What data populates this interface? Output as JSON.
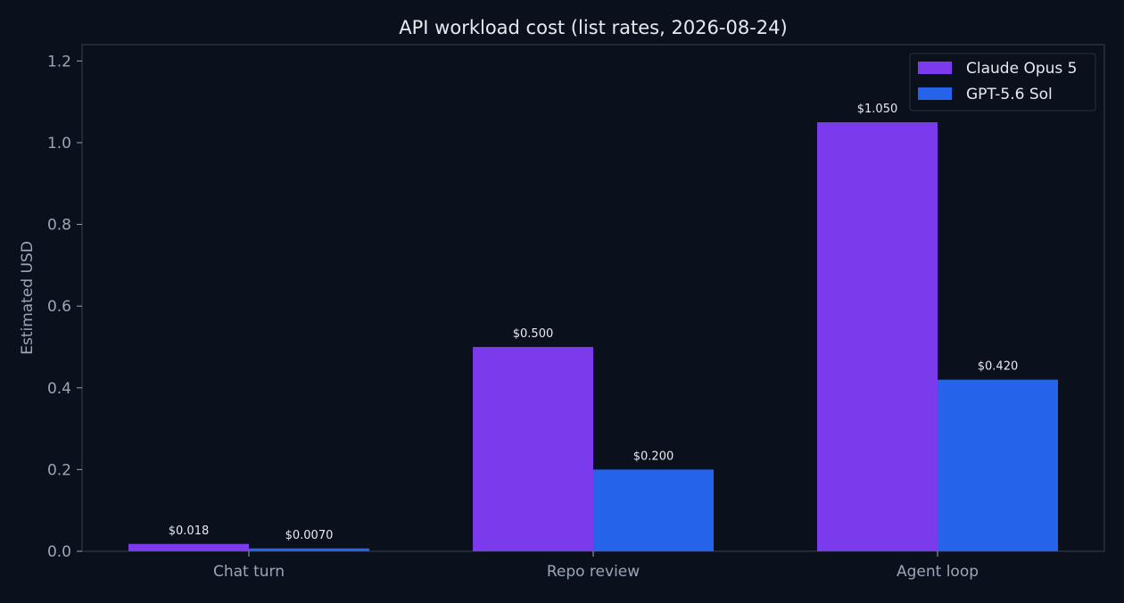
{
  "chart_data": {
    "type": "bar",
    "title": "API workload cost (list rates, 2026-08-24)",
    "xlabel": "",
    "ylabel": "Estimated USD",
    "categories": [
      "Chat turn",
      "Repo review",
      "Agent loop"
    ],
    "series": [
      {
        "name": "Claude Opus 5",
        "color": "#7c3aed",
        "values": [
          0.018,
          0.5,
          1.05
        ],
        "labels": [
          "$0.018",
          "$0.500",
          "$1.050"
        ]
      },
      {
        "name": "GPT-5.6 Sol",
        "color": "#2563eb",
        "values": [
          0.007,
          0.2,
          0.42
        ],
        "labels": [
          "$0.0070",
          "$0.200",
          "$0.420"
        ]
      }
    ],
    "ylim": [
      0,
      1.24
    ],
    "yticks": [
      "0.0",
      "0.2",
      "0.4",
      "0.6",
      "0.8",
      "1.0",
      "1.2"
    ],
    "ytick_values": [
      0,
      0.2,
      0.4,
      0.6,
      0.8,
      1.0,
      1.2
    ],
    "grid": false,
    "legend_position": "top-right",
    "colors": {
      "background": "#0b111c",
      "axis": "#26323f",
      "tick_text": "#9aa6b8",
      "title_text": "#e6eaf0",
      "data_label_text": "#e6eaf0"
    }
  }
}
